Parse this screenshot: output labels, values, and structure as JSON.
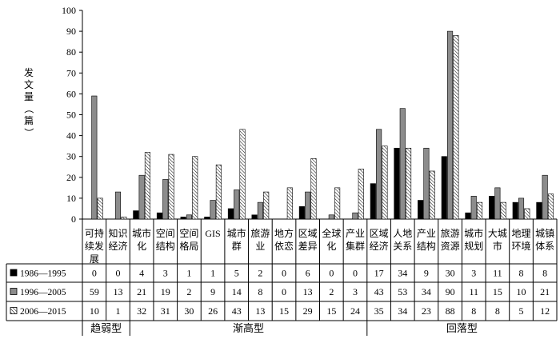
{
  "chart_data": {
    "type": "bar",
    "ylabel": "发文量（篇）",
    "ylim": [
      0,
      100
    ],
    "yticks": [
      0,
      10,
      20,
      30,
      40,
      50,
      60,
      70,
      80,
      90,
      100
    ],
    "legend_placement": "left-of-table",
    "categories": [
      "可持续发展",
      "知识经济",
      "城市化",
      "空间结构",
      "空间格局",
      "GIS",
      "城市群",
      "旅游业",
      "地方依恋",
      "区域差异",
      "全球化",
      "产业集群",
      "区域经济",
      "人地关系",
      "产业结构",
      "旅游资源",
      "城市规划",
      "大城市",
      "地理环境",
      "城镇体系"
    ],
    "category_lines": [
      [
        "可持",
        "续发",
        "展"
      ],
      [
        "知识",
        "经济"
      ],
      [
        "城市",
        "化"
      ],
      [
        "空间",
        "结构"
      ],
      [
        "空间",
        "格局"
      ],
      [
        "GIS"
      ],
      [
        "城市",
        "群"
      ],
      [
        "旅游",
        "业"
      ],
      [
        "地方",
        "依恋"
      ],
      [
        "区域",
        "差异"
      ],
      [
        "全球",
        "化"
      ],
      [
        "产业",
        "集群"
      ],
      [
        "区域",
        "经济"
      ],
      [
        "人地",
        "关系"
      ],
      [
        "产业",
        "结构"
      ],
      [
        "旅游",
        "资源"
      ],
      [
        "城市",
        "规划"
      ],
      [
        "大城",
        "市"
      ],
      [
        "地理",
        "环境"
      ],
      [
        "城镇",
        "体系"
      ]
    ],
    "series": [
      {
        "name": "1986—1995",
        "color": "#000000",
        "pattern": "solid-black",
        "values": [
          0,
          0,
          4,
          3,
          1,
          1,
          5,
          2,
          0,
          6,
          0,
          0,
          17,
          34,
          9,
          30,
          3,
          11,
          8,
          8
        ]
      },
      {
        "name": "1996—2005",
        "color": "#8c8c8c",
        "pattern": "solid-gray",
        "values": [
          59,
          13,
          21,
          19,
          2,
          9,
          14,
          8,
          0,
          13,
          2,
          3,
          43,
          53,
          34,
          90,
          11,
          15,
          10,
          21
        ]
      },
      {
        "name": "2006—2015",
        "color": "#ffffff",
        "pattern": "diagonal-hatch",
        "values": [
          10,
          1,
          32,
          31,
          30,
          26,
          43,
          13,
          15,
          29,
          15,
          24,
          35,
          34,
          23,
          88,
          8,
          8,
          5,
          12
        ]
      }
    ],
    "groups": [
      {
        "label": "趋弱型",
        "start": 0,
        "end": 1
      },
      {
        "label": "渐高型",
        "start": 2,
        "end": 11
      },
      {
        "label": "回落型",
        "start": 12,
        "end": 19
      }
    ]
  }
}
